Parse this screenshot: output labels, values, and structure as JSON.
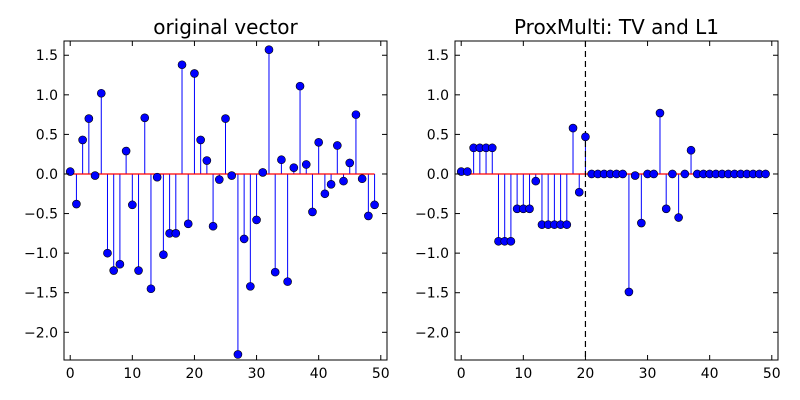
{
  "chart_data": [
    {
      "type": "stem",
      "title": "original vector",
      "xlabel": "",
      "ylabel": "",
      "xlim": [
        -1,
        51
      ],
      "ylim": [
        -2.35,
        1.68
      ],
      "xticks": [
        0,
        10,
        20,
        30,
        40,
        50
      ],
      "yticks": [
        1.5,
        1.0,
        0.5,
        0.0,
        -0.5,
        -1.0,
        -1.5,
        -2.0
      ],
      "xtick_labels": [
        "0",
        "10",
        "20",
        "30",
        "40",
        "50"
      ],
      "ytick_labels": [
        "1.5",
        "1.0",
        "0.5",
        "0.0",
        "−0.5",
        "−1.0",
        "−1.5",
        "−2.0"
      ],
      "x": [
        0,
        1,
        2,
        3,
        4,
        5,
        6,
        7,
        8,
        9,
        10,
        11,
        12,
        13,
        14,
        15,
        16,
        17,
        18,
        19,
        20,
        21,
        22,
        23,
        24,
        25,
        26,
        27,
        28,
        29,
        30,
        31,
        32,
        33,
        34,
        35,
        36,
        37,
        38,
        39,
        40,
        41,
        42,
        43,
        44,
        45,
        46,
        47,
        48,
        49
      ],
      "values": [
        0.03,
        -0.38,
        0.43,
        0.7,
        -0.02,
        1.02,
        -1.0,
        -1.22,
        -1.14,
        0.29,
        -0.39,
        -1.22,
        0.71,
        -1.45,
        -0.04,
        -1.02,
        -0.75,
        -0.75,
        1.38,
        -0.63,
        1.27,
        0.43,
        0.17,
        -0.66,
        -0.07,
        0.7,
        -0.02,
        -2.28,
        -0.82,
        -1.42,
        -0.58,
        0.02,
        1.57,
        -1.24,
        0.18,
        -1.36,
        0.08,
        1.11,
        0.12,
        -0.48,
        0.4,
        -0.25,
        -0.13,
        0.36,
        -0.09,
        0.14,
        0.75,
        -0.06,
        -0.53,
        -0.39
      ],
      "vline": null,
      "colors": {
        "marker": "#0000ff",
        "stem": "#0000ff",
        "baseline": "#ff0000"
      }
    },
    {
      "type": "stem",
      "title": "ProxMulti: TV and L1",
      "xlabel": "",
      "ylabel": "",
      "xlim": [
        -1,
        51
      ],
      "ylim": [
        -2.35,
        1.68
      ],
      "xticks": [
        0,
        10,
        20,
        30,
        40,
        50
      ],
      "yticks": [
        1.5,
        1.0,
        0.5,
        0.0,
        -0.5,
        -1.0,
        -1.5,
        -2.0
      ],
      "xtick_labels": [
        "0",
        "10",
        "20",
        "30",
        "40",
        "50"
      ],
      "ytick_labels": [
        "1.5",
        "1.0",
        "0.5",
        "0.0",
        "−0.5",
        "−1.0",
        "−1.5",
        "−2.0"
      ],
      "x": [
        0,
        1,
        2,
        3,
        4,
        5,
        6,
        7,
        8,
        9,
        10,
        11,
        12,
        13,
        14,
        15,
        16,
        17,
        18,
        19,
        20,
        21,
        22,
        23,
        24,
        25,
        26,
        27,
        28,
        29,
        30,
        31,
        32,
        33,
        34,
        35,
        36,
        37,
        38,
        39,
        40,
        41,
        42,
        43,
        44,
        45,
        46,
        47,
        48,
        49
      ],
      "values": [
        0.03,
        0.03,
        0.33,
        0.33,
        0.33,
        0.33,
        -0.85,
        -0.85,
        -0.85,
        -0.44,
        -0.44,
        -0.44,
        -0.09,
        -0.64,
        -0.64,
        -0.64,
        -0.64,
        -0.64,
        0.58,
        -0.23,
        0.47,
        0.0,
        0.0,
        0.0,
        0.0,
        0.0,
        0.0,
        -1.49,
        -0.02,
        -0.62,
        0.0,
        0.0,
        0.77,
        -0.44,
        0.0,
        -0.55,
        0.0,
        0.3,
        0.0,
        0.0,
        0.0,
        0.0,
        0.0,
        0.0,
        0.0,
        0.0,
        0.0,
        0.0,
        0.0,
        0.0
      ],
      "vline": 20,
      "colors": {
        "marker": "#0000ff",
        "stem": "#0000ff",
        "baseline": "#ff0000",
        "vline": "#000000"
      }
    }
  ]
}
